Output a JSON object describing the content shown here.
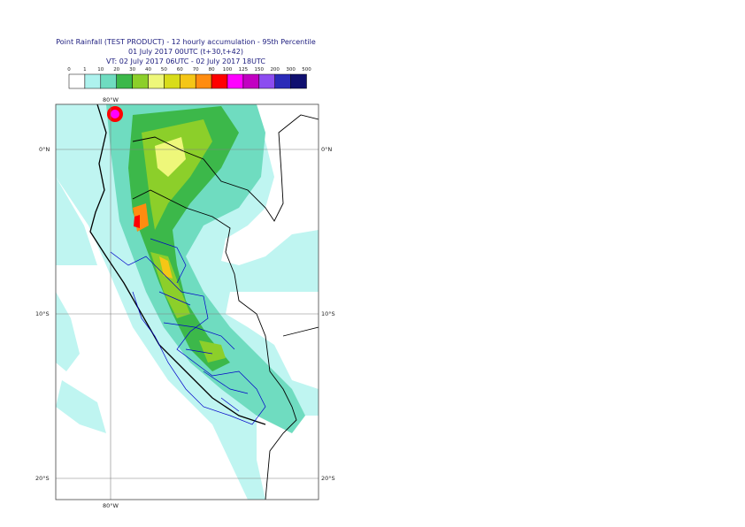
{
  "title": {
    "line1": "Point Rainfall (TEST PRODUCT) - 12 hourly accumulation - 95th Percentile",
    "line2": "01 July 2017 00UTC (t+30,t+42)",
    "line3": "VT: 02 July 2017 06UTC - 02 July 2017 18UTC"
  },
  "legend": {
    "thresholds": [
      "0",
      "1",
      "10",
      "20",
      "30",
      "40",
      "50",
      "60",
      "70",
      "80",
      "100",
      "125",
      "150",
      "200",
      "300",
      "500"
    ],
    "colors": [
      "#ffffff",
      "#aef2ee",
      "#6fdcc0",
      "#3cb84a",
      "#8ccf2a",
      "#eef77a",
      "#d8dc1a",
      "#f5c616",
      "#ff8c10",
      "#ff0000",
      "#ff00ff",
      "#c200c2",
      "#8c4cf0",
      "#2a2ab8",
      "#101070"
    ]
  },
  "map": {
    "lat_labels": {
      "north": "0°N",
      "south10": "10°S",
      "south20": "20°S"
    },
    "lon_labels": {
      "top": "80°W",
      "bottom": "80°W"
    },
    "colors": {
      "ocean_light": "#bff5f1",
      "land_light": "#aef2ee",
      "mid": "#6fdcc0",
      "green": "#3cb84a",
      "border": "#000000",
      "admin": "#0000c8",
      "grid": "#808080"
    }
  }
}
